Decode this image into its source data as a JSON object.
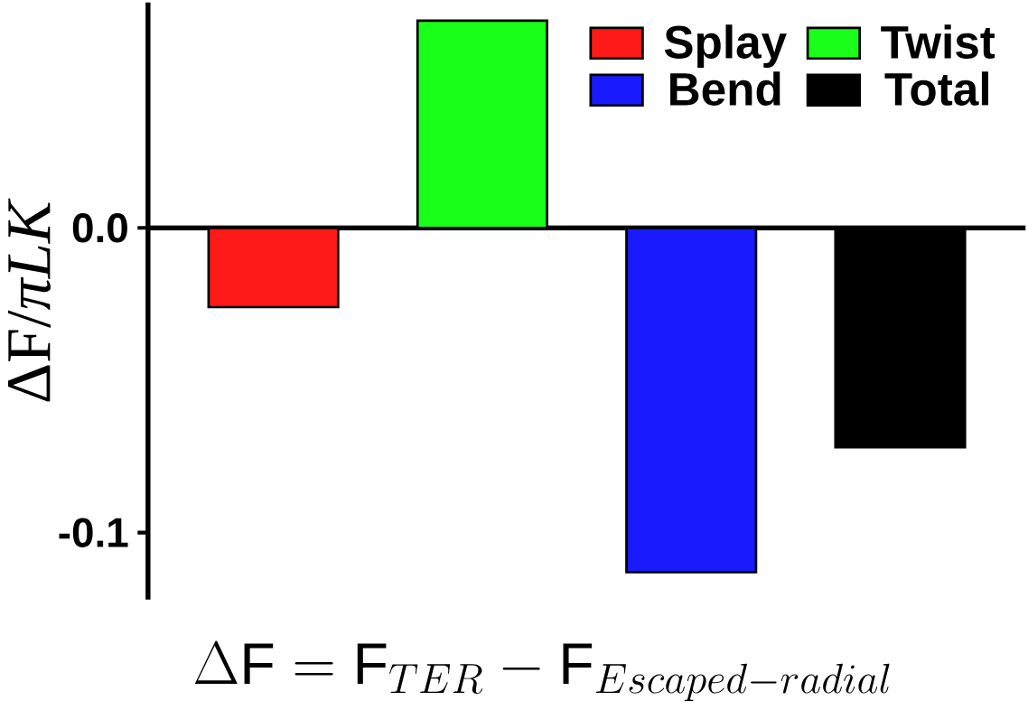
{
  "chart_data": {
    "type": "bar",
    "xlabel": "\\Delta\\mathrm{F} = \\mathrm{F}_{TER} - \\mathrm{F}_{Escaped-radial}",
    "ylabel": "ΔF/*πLK*",
    "categories": [
      null,
      null,
      null,
      null
    ],
    "series": [
      {
        "name": "Splay",
        "color": "#ff1a1a",
        "values": [
          -0.026,
          null,
          null,
          null
        ]
      },
      {
        "name": "Twist",
        "color": "#1aff1a",
        "values": [
          null,
          0.068,
          null,
          null
        ]
      },
      {
        "name": "Bend",
        "color": "#1a1aff",
        "values": [
          null,
          null,
          -0.113,
          null
        ]
      },
      {
        "name": "Total",
        "color": "#000000",
        "values": [
          null,
          null,
          null,
          -0.072
        ]
      }
    ],
    "ylim": [
      -0.122,
      0.074
    ],
    "yticks": [
      {
        "value": -0.1,
        "label": "-0.1"
      },
      {
        "value": 0.0,
        "label": "0.0"
      }
    ],
    "legend": "top right"
  }
}
